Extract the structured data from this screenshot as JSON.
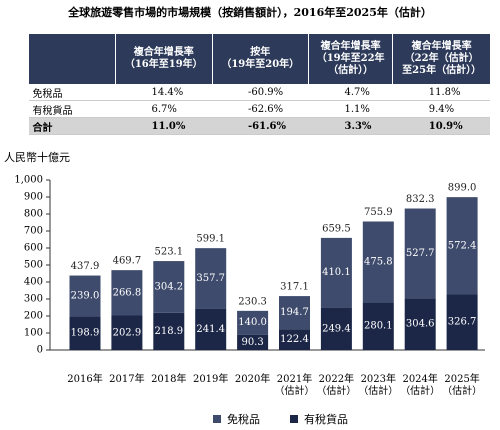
{
  "title": "全球旅遊零售市場的市場規模（按銷售額計），2016年至2025年（估計）",
  "table": {
    "header": [
      "複合年增長率\n（16年至19年）",
      "按年\n（19年至20年）",
      "複合年增長率\n（19年至22年\n（估計））",
      "複合年增長率\n（22年（估計）\n至25年（估計））"
    ],
    "rows": [
      [
        "免稅品",
        "14.4%",
        "-60.9%",
        "4.7%",
        "11.8%"
      ],
      [
        "有稅貨品",
        "6.7%",
        "-62.6%",
        "1.1%",
        "9.4%"
      ],
      [
        "合計",
        "11.0%",
        "-61.6%",
        "3.3%",
        "10.9%"
      ]
    ]
  },
  "chart_data": {
    "type": "stacked_bar",
    "y_label": "人民幣十億元",
    "categories": [
      "2016年",
      "2017年",
      "2018年",
      "2019年",
      "2020年",
      "2021年\n（估計）",
      "2022年\n（估計）",
      "2023年\n（估計）",
      "2024年\n（估計）",
      "2025年\n（估計）"
    ],
    "series": [
      {
        "name": "免稅品",
        "color": "#3e4b6c",
        "values": [
          239.0,
          266.8,
          304.2,
          357.7,
          140.0,
          194.7,
          410.1,
          475.8,
          527.7,
          572.4
        ],
        "value_labels": [
          "239.0",
          "266.8",
          "304.2",
          "357.7",
          "140.0",
          "194.7",
          "410.1",
          "475.8",
          "527.7",
          "572.4"
        ]
      },
      {
        "name": "有稅貨品",
        "color": "#1c2748",
        "values": [
          198.9,
          202.9,
          218.9,
          241.4,
          90.3,
          122.4,
          249.4,
          280.1,
          304.6,
          326.7
        ],
        "value_labels": [
          "198.9",
          "202.9",
          "218.9",
          "241.4",
          "90.3",
          "122.4",
          "249.4",
          "280.1",
          "304.6",
          "326.7"
        ]
      }
    ],
    "totals": [
      437.9,
      469.7,
      523.1,
      599.1,
      230.3,
      317.1,
      659.5,
      755.9,
      832.3,
      899.0
    ],
    "total_labels": [
      "437.9",
      "469.7",
      "523.1",
      "599.1",
      "230.3",
      "317.1",
      "659.5",
      "755.9",
      "832.3",
      "899.0"
    ],
    "ylim": [
      0,
      1000
    ],
    "yticks": [
      0,
      100,
      200,
      300,
      400,
      500,
      600,
      700,
      800,
      900,
      {
        "value": 1000,
        "label": "1,000"
      }
    ]
  }
}
